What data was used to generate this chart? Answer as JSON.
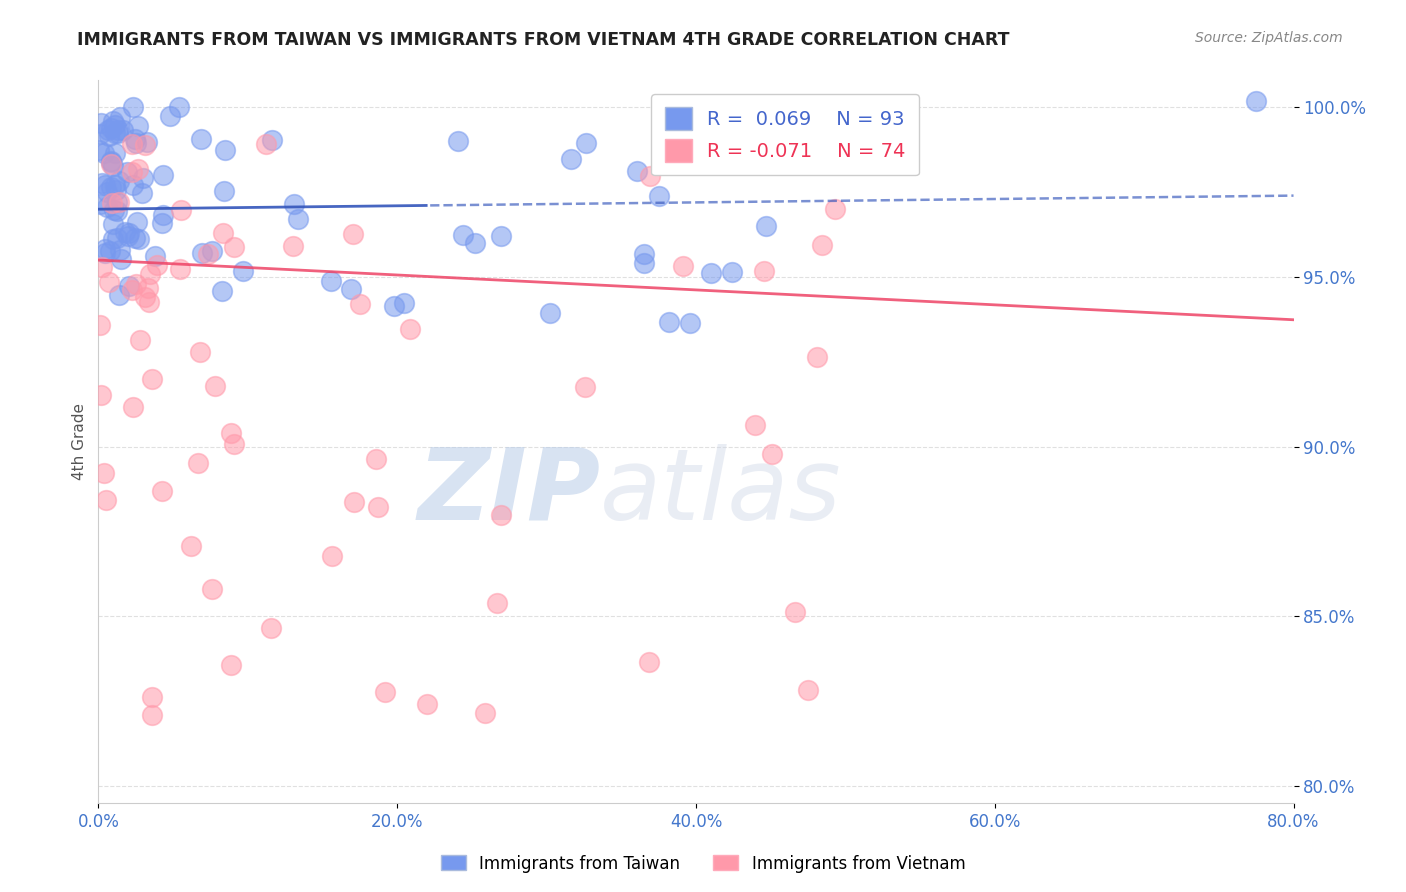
{
  "title": "IMMIGRANTS FROM TAIWAN VS IMMIGRANTS FROM VIETNAM 4TH GRADE CORRELATION CHART",
  "source": "Source: ZipAtlas.com",
  "ylabel": "4th Grade",
  "xlim": [
    0.0,
    0.8
  ],
  "ylim": [
    0.795,
    1.008
  ],
  "xtick_labels": [
    "0.0%",
    "20.0%",
    "40.0%",
    "60.0%",
    "80.0%"
  ],
  "xtick_vals": [
    0.0,
    0.2,
    0.4,
    0.6,
    0.8
  ],
  "ytick_labels": [
    "80.0%",
    "85.0%",
    "90.0%",
    "95.0%",
    "100.0%"
  ],
  "ytick_vals": [
    0.8,
    0.85,
    0.9,
    0.95,
    1.0
  ],
  "taiwan_color": "#7799ee",
  "vietnam_color": "#ff99aa",
  "taiwan_R": 0.069,
  "taiwan_N": 93,
  "vietnam_R": -0.071,
  "vietnam_N": 74,
  "watermark_zip": "ZIP",
  "watermark_atlas": "atlas",
  "title_color": "#222222",
  "source_color": "#888888",
  "tick_color": "#4477cc",
  "ylabel_color": "#555555",
  "grid_color": "#dddddd",
  "taiwan_line_color": "#3355bb",
  "vietnam_line_color": "#ee4466",
  "legend_taiwan_color": "#4466cc",
  "legend_vietnam_color": "#ee3355"
}
